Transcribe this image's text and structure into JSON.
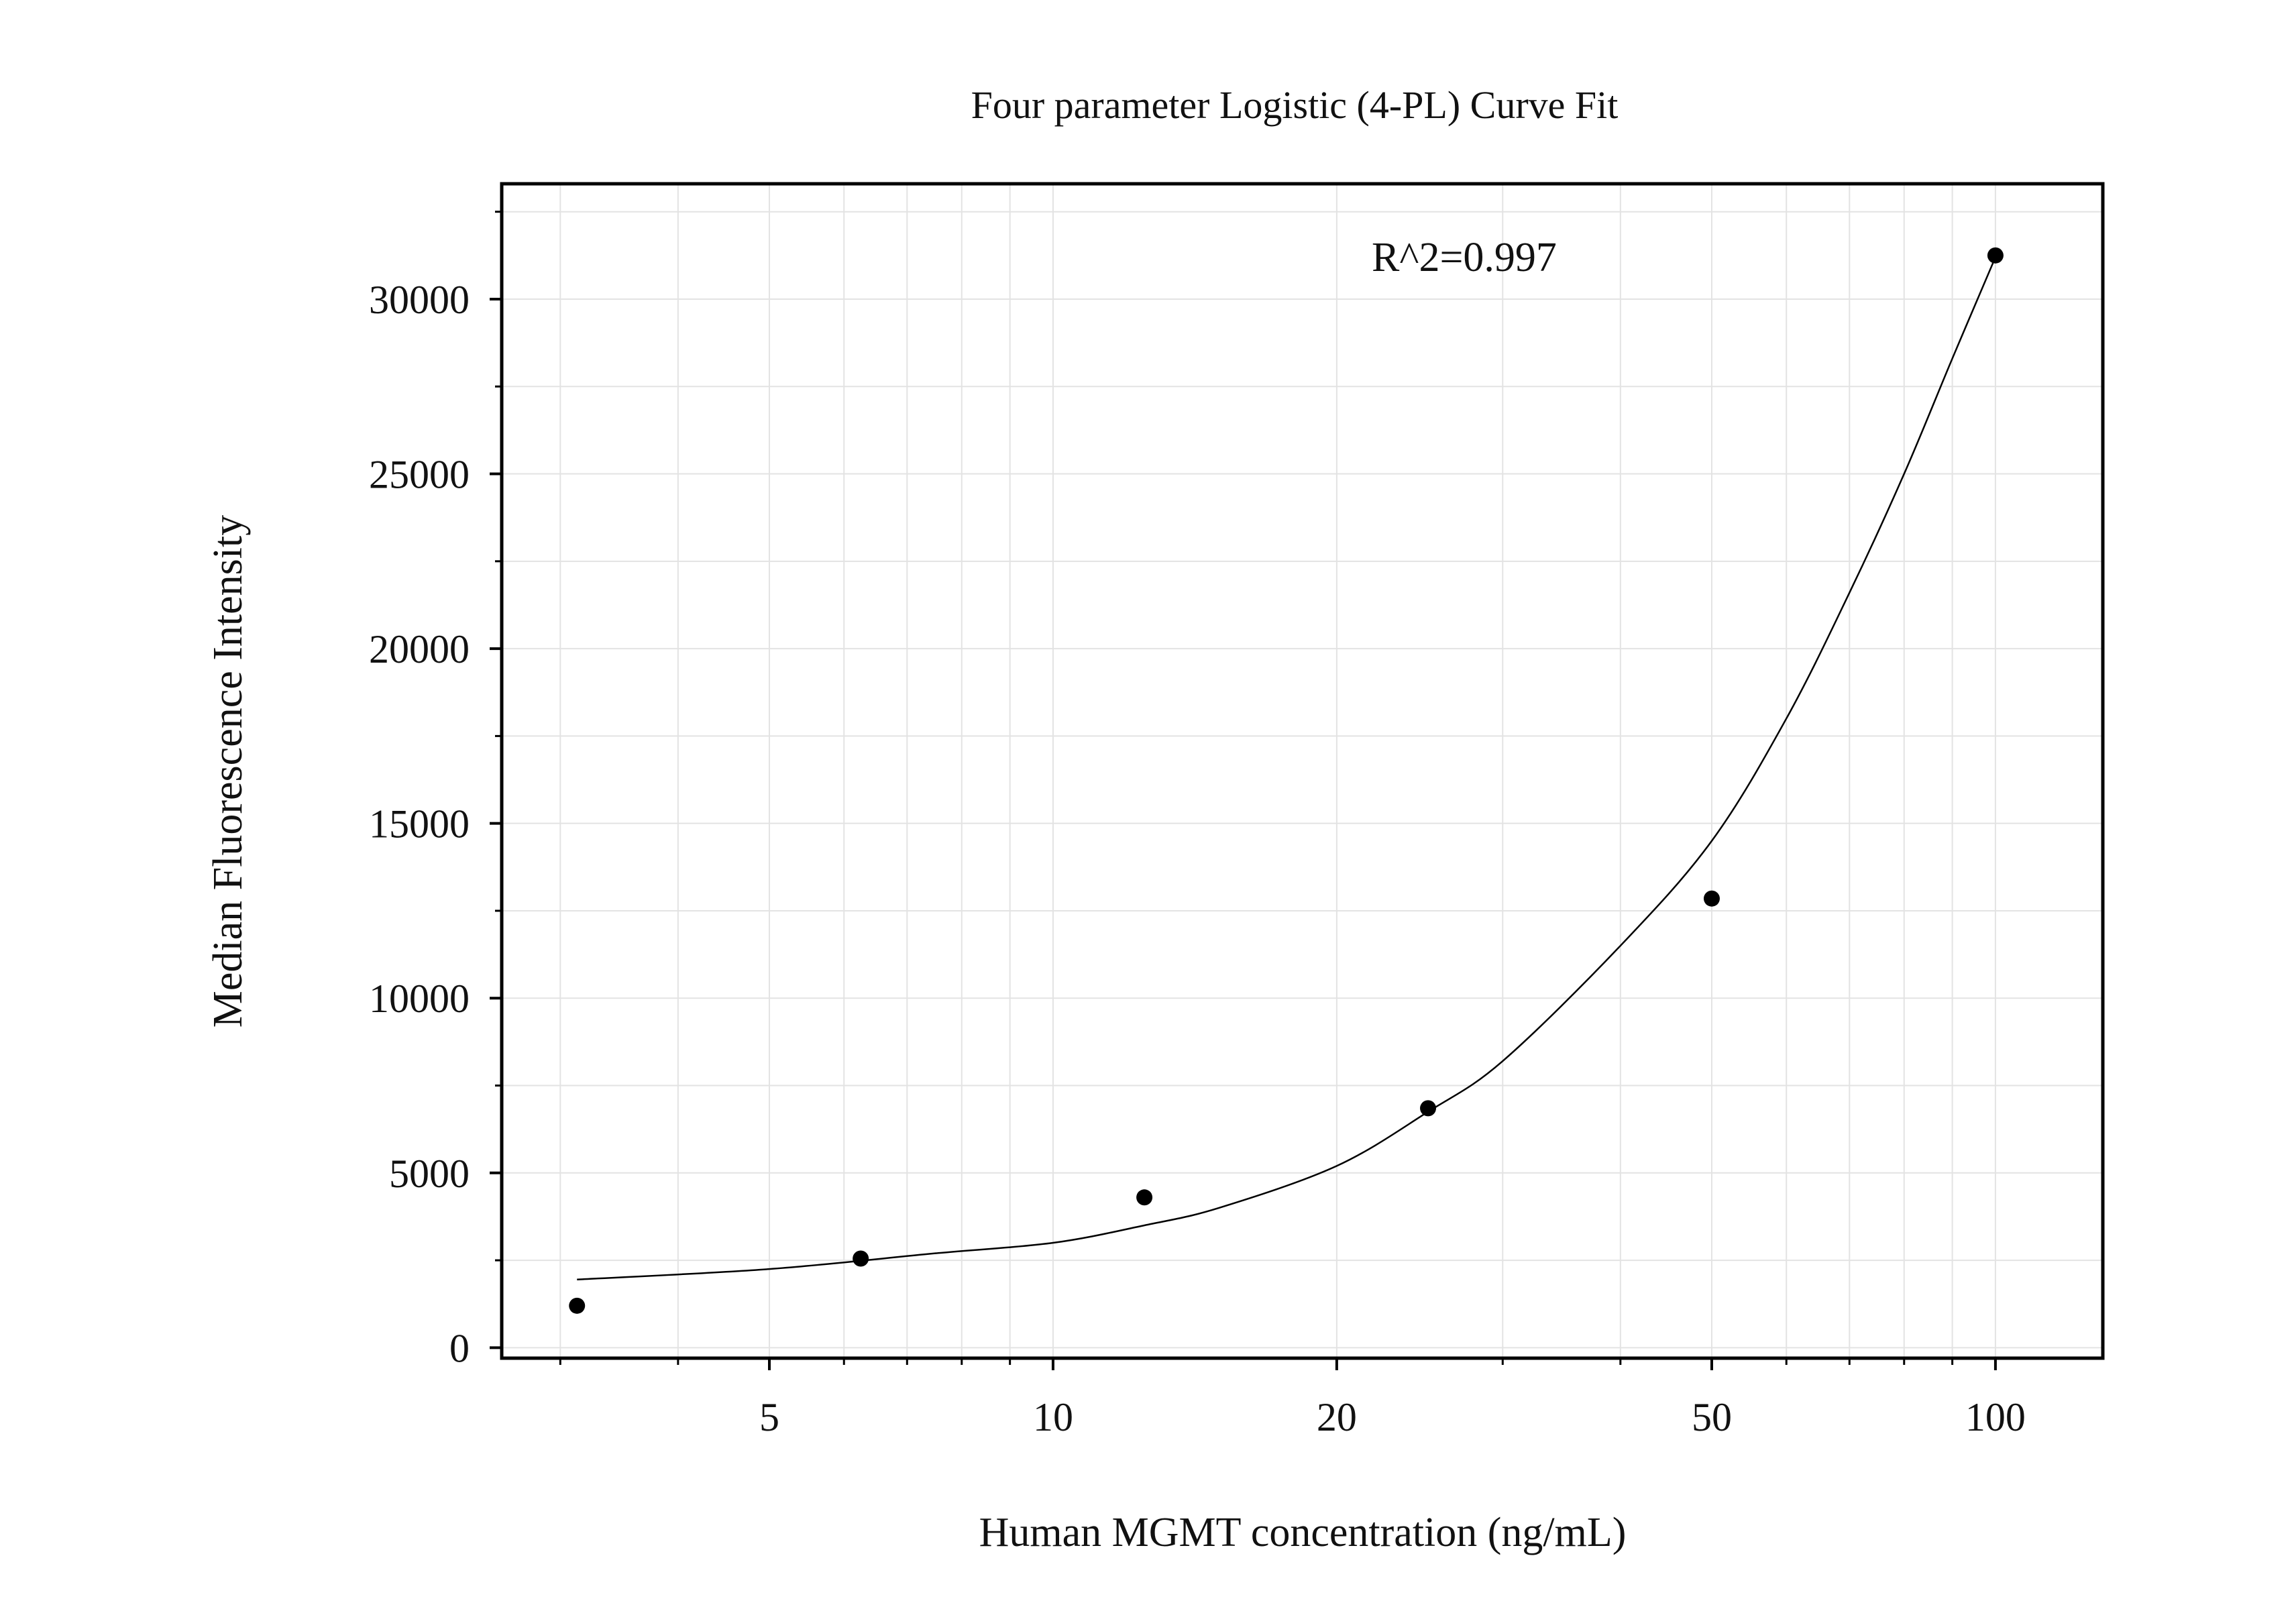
{
  "chart_data": {
    "type": "scatter",
    "title": "Four parameter Logistic (4-PL) Curve Fit",
    "xlabel": "Human MGMT concentration (ng/mL)",
    "ylabel": "Median Fluorescence Intensity",
    "x_scale": "log10",
    "xlim": [
      2.6,
      130
    ],
    "ylim": [
      -300,
      33300
    ],
    "x_major_ticks": [
      5,
      10,
      20,
      50,
      100
    ],
    "x_major_tick_labels": [
      "5",
      "10",
      "20",
      "50",
      "100"
    ],
    "x_minor_ticks": [
      3,
      4,
      6,
      7,
      8,
      9,
      30,
      40,
      60,
      70,
      80,
      90
    ],
    "y_major_ticks": [
      0,
      5000,
      10000,
      15000,
      20000,
      25000,
      30000
    ],
    "y_major_tick_labels": [
      "0",
      "5000",
      "10000",
      "15000",
      "20000",
      "25000",
      "30000"
    ],
    "y_minor_ticks": [
      2500,
      7500,
      12500,
      17500,
      22500,
      27500,
      32500
    ],
    "grid": true,
    "annotation": "R^2=0.997",
    "series": [
      {
        "kind": "points",
        "x": [
          3.125,
          6.25,
          12.5,
          25,
          50,
          100
        ],
        "y": [
          1200,
          2550,
          4300,
          6850,
          12850,
          31250
        ]
      },
      {
        "kind": "fit-curve",
        "x": [
          3.125,
          5,
          7.5,
          10,
          12.5,
          15,
          20,
          25,
          30,
          40,
          50,
          60,
          70,
          80,
          90,
          100
        ],
        "y": [
          1950,
          2250,
          2700,
          3000,
          3500,
          4000,
          5200,
          6750,
          8200,
          11500,
          14500,
          18000,
          21600,
          25000,
          28300,
          31200
        ]
      }
    ],
    "colors": {
      "points": "#000000",
      "curve": "#000000",
      "grid": "#e3e3e3",
      "axes": "#000000"
    }
  }
}
